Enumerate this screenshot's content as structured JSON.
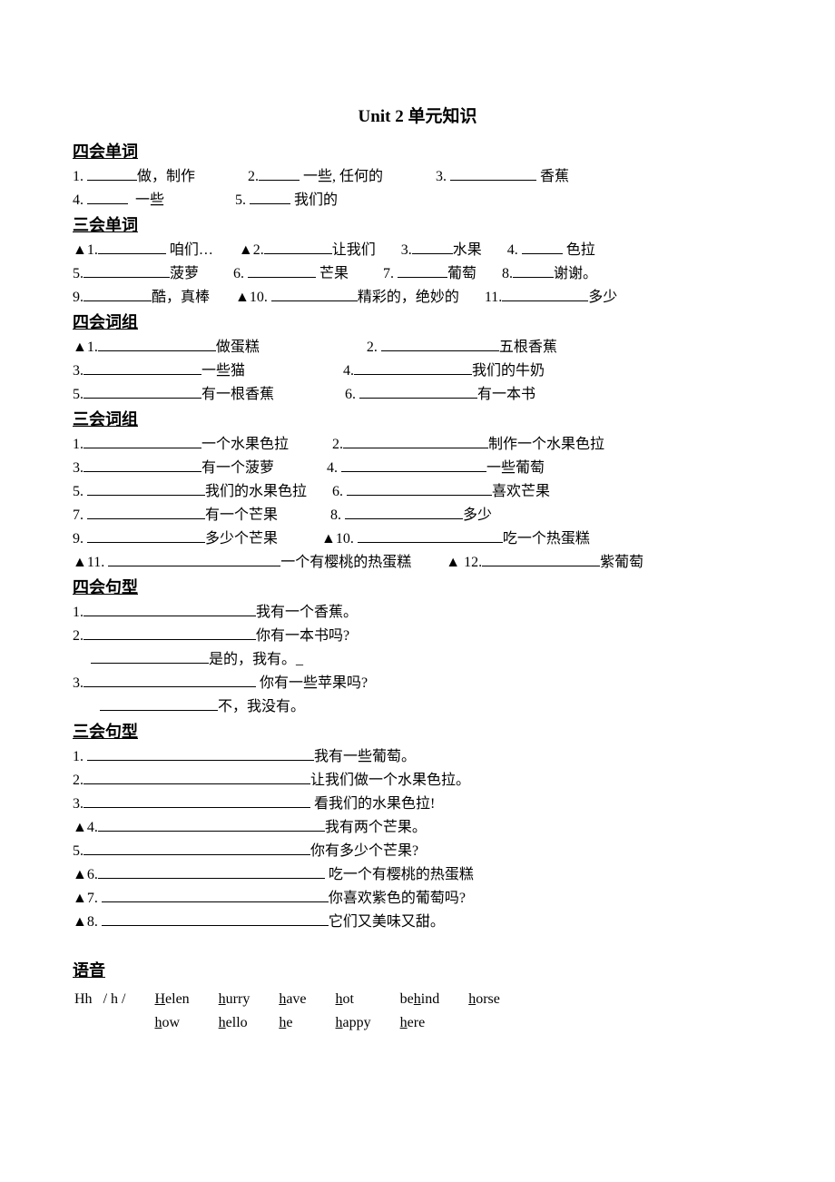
{
  "title": "Unit 2  单元知识",
  "sections": {
    "s1": "四会单词",
    "s2": "三会单词",
    "s3": "四会词组",
    "s4": "三会词组",
    "s5": "四会句型",
    "s6": "三会句型",
    "s7": "语音"
  },
  "four_words": {
    "i1": "1.",
    "t1": "做，制作",
    "i2": "2.",
    "t2": "一些, 任何的",
    "i3": "3.",
    "t3": "香蕉",
    "i4": "4.",
    "t4": "一些",
    "i5": "5.",
    "t5": "我们的"
  },
  "three_words": {
    "i1": "▲1.",
    "t1": "咱们…",
    "i2": "▲2.",
    "t2": "让我们",
    "i3": "3.",
    "t3": "水果",
    "i4": "4.",
    "t4": "色拉",
    "i5": "5.",
    "t5": "菠萝",
    "i6": "6.",
    "t6": "芒果",
    "i7": "7.",
    "t7": "葡萄",
    "i8": "8.",
    "t8": "谢谢。",
    "i9": "9.",
    "t9": "酷，真棒",
    "i10": "▲10.",
    "t10": "精彩的，绝妙的",
    "i11": "11.",
    "t11": "多少"
  },
  "four_phrases": {
    "i1": "▲1.",
    "t1": "做蛋糕",
    "i2": "2.",
    "t2": "五根香蕉",
    "i3": "3.",
    "t3": "一些猫",
    "i4": "4.",
    "t4": "我们的牛奶",
    "i5": "5.",
    "t5": "有一根香蕉",
    "i6": "6.",
    "t6": "有一本书"
  },
  "three_phrases": {
    "i1": "1.",
    "t1": "一个水果色拉",
    "i2": "2.",
    "t2": "制作一个水果色拉",
    "i3": "3.",
    "t3": "有一个菠萝",
    "i4": "4.",
    "t4": "一些葡萄",
    "i5": "5.",
    "t5": "我们的水果色拉",
    "i6": "6.",
    "t6": "喜欢芒果",
    "i7": "7.",
    "t7": "有一个芒果",
    "i8": "8.",
    "t8": "多少",
    "i9": "9.",
    "t9": "多少个芒果",
    "i10": "▲10.",
    "t10": "吃一个热蛋糕",
    "i11": "▲11.",
    "t11": "一个有樱桃的热蛋糕",
    "i12": "▲ 12.",
    "t12": "紫葡萄"
  },
  "four_sent": {
    "i1": "1.",
    "t1": "我有一个香蕉。",
    "i2": "2.",
    "t2": "你有一本书吗?",
    "i2a": "是的，我有。",
    "t2a_suffix": "_",
    "i3": "3.",
    "t3": "你有一些苹果吗?",
    "i3a": "不，我没有。"
  },
  "three_sent": {
    "i1": "1.",
    "t1": "我有一些葡萄。",
    "i2": "2.",
    "t2": "让我们做一个水果色拉。",
    "i3": "3.",
    "t3": "看我们的水果色拉!",
    "i4": "▲4.",
    "t4": "我有两个芒果。",
    "i5": "5.",
    "t5": "你有多少个芒果?",
    "i6": "▲6.",
    "t6": "吃一个有樱桃的热蛋糕",
    "i7": "▲7.",
    "t7": "你喜欢紫色的葡萄吗?",
    "i8": "▲8.",
    "t8": "它们又美味又甜。"
  },
  "phonetics": {
    "letter": "Hh",
    "sound": "/ h /",
    "r1c1": "H",
    "r1c1b": "elen",
    "r1c2": "h",
    "r1c2b": "urry",
    "r1c3": "h",
    "r1c3b": "ave",
    "r1c4": "h",
    "r1c4b": "ot",
    "r1c5a": "be",
    "r1c5": "h",
    "r1c5b": "ind",
    "r1c6": "h",
    "r1c6b": "orse",
    "r2c1": "h",
    "r2c1b": "ow",
    "r2c2": "h",
    "r2c2b": "ello",
    "r2c3": "h",
    "r2c3b": "e",
    "r2c4": "h",
    "r2c4b": "appy",
    "r2c5": "h",
    "r2c5b": "ere"
  }
}
